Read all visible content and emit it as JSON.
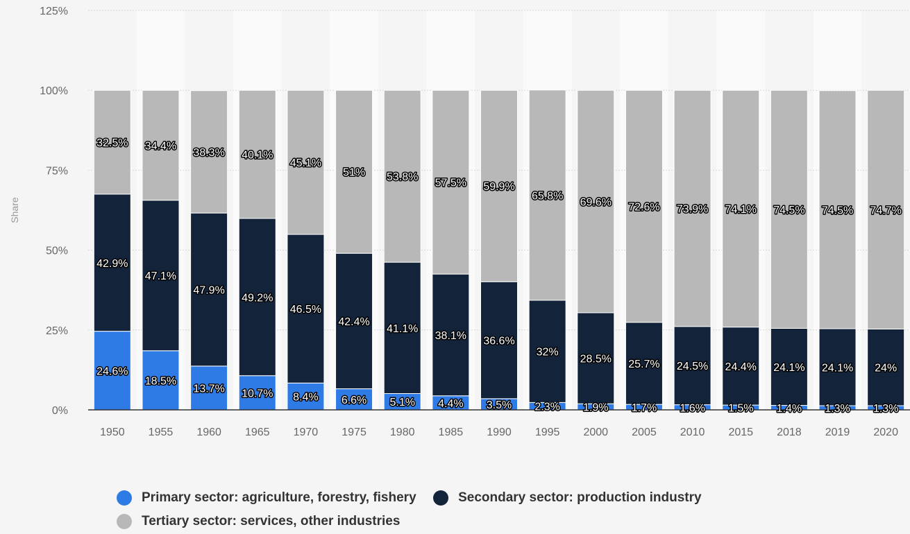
{
  "chart_data": {
    "type": "bar",
    "stacked": true,
    "ylabel": "Share",
    "ylim": [
      0,
      125
    ],
    "yticks": [
      "0%",
      "25%",
      "50%",
      "75%",
      "100%",
      "125%"
    ],
    "grid": true,
    "legend_position": "bottom",
    "categories": [
      "1950",
      "1955",
      "1960",
      "1965",
      "1970",
      "1975",
      "1980",
      "1985",
      "1990",
      "1995",
      "2000",
      "2005",
      "2010",
      "2015",
      "2018",
      "2019",
      "2020"
    ],
    "series": [
      {
        "name": "Primary sector: agriculture, forestry, fishery",
        "color": "#2f7be5",
        "values": [
          24.6,
          18.5,
          13.7,
          10.7,
          8.4,
          6.6,
          5.1,
          4.4,
          3.5,
          2.3,
          1.9,
          1.7,
          1.6,
          1.5,
          1.4,
          1.3,
          1.3
        ],
        "labels": [
          "24.6%",
          "18.5%",
          "13.7%",
          "10.7%",
          "8.4%",
          "6.6%",
          "5.1%",
          "4.4%",
          "3.5%",
          "2.3%",
          "1.9%",
          "1.7%",
          "1.6%",
          "1.5%",
          "1.4%",
          "1.3%",
          "1.3%"
        ]
      },
      {
        "name": "Secondary sector: production industry",
        "color": "#13233a",
        "values": [
          42.9,
          47.1,
          47.9,
          49.2,
          46.5,
          42.4,
          41.1,
          38.1,
          36.6,
          32,
          28.5,
          25.7,
          24.5,
          24.4,
          24.1,
          24.1,
          24
        ],
        "labels": [
          "42.9%",
          "47.1%",
          "47.9%",
          "49.2%",
          "46.5%",
          "42.4%",
          "41.1%",
          "38.1%",
          "36.6%",
          "32%",
          "28.5%",
          "25.7%",
          "24.5%",
          "24.4%",
          "24.1%",
          "24.1%",
          "24%"
        ]
      },
      {
        "name": "Tertiary sector: services, other industries",
        "color": "#b8b8b8",
        "values": [
          32.5,
          34.4,
          38.3,
          40.1,
          45.1,
          51,
          53.8,
          57.5,
          59.9,
          65.8,
          69.6,
          72.6,
          73.9,
          74.1,
          74.5,
          74.5,
          74.7
        ],
        "labels": [
          "32.5%",
          "34.4%",
          "38.3%",
          "40.1%",
          "45.1%",
          "51%",
          "53.8%",
          "57.5%",
          "59.9%",
          "65.8%",
          "69.6%",
          "72.6%",
          "73.9%",
          "74.1%",
          "74.5%",
          "74.5%",
          "74.7%"
        ]
      }
    ]
  }
}
